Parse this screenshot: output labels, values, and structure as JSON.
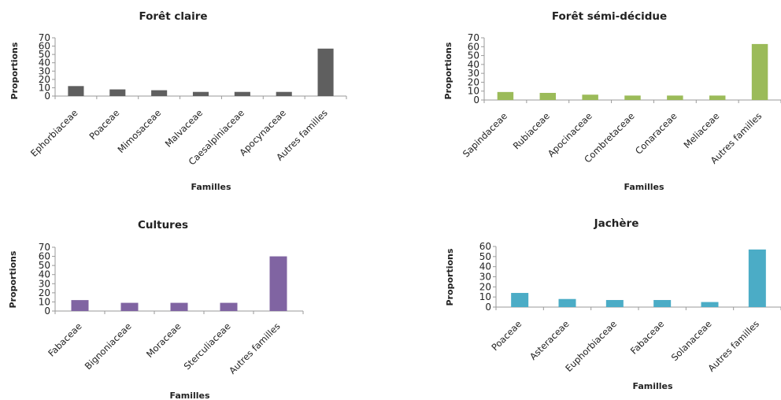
{
  "chart_data": [
    {
      "type": "bar",
      "title": "Forêt claire",
      "xlabel": "Familles",
      "ylabel": "Proportions",
      "ylim": [
        0,
        70
      ],
      "yticks": [
        0,
        10,
        20,
        30,
        40,
        50,
        60,
        70
      ],
      "grid": false,
      "legend": "none",
      "color": "#5f5f5f",
      "categories": [
        "Ephorbiaceae",
        "Poaceae",
        "Mimosaceae",
        "Malvaceae",
        "Caesalpiniaceae",
        "Apocynaceae",
        "Autres familles"
      ],
      "values": [
        12,
        8,
        7,
        5,
        5,
        5,
        57
      ]
    },
    {
      "type": "bar",
      "title": "Forêt sémi-décidue",
      "xlabel": "Familles",
      "ylabel": "Proportions",
      "ylim": [
        0,
        70
      ],
      "yticks": [
        0,
        10,
        20,
        30,
        40,
        50,
        60,
        70
      ],
      "grid": false,
      "legend": "none",
      "color": "#9bbb59",
      "categories": [
        "Sapindaceae",
        "Rubiaceae",
        "Apocinaceae",
        "Combretaceae",
        "Conaraceae",
        "Meliaceae",
        "Autres familles"
      ],
      "values": [
        9,
        8,
        6,
        5,
        5,
        5,
        63
      ]
    },
    {
      "type": "bar",
      "title": "Cultures",
      "xlabel": "Familles",
      "ylabel": "Proportions",
      "ylim": [
        0,
        70
      ],
      "yticks": [
        0,
        10,
        20,
        30,
        40,
        50,
        60,
        70
      ],
      "grid": false,
      "legend": "none",
      "color": "#8064a2",
      "categories": [
        "Fabaceae",
        "Bignoniaceae",
        "Moraceae",
        "Sterculiaceae",
        "Autres familles"
      ],
      "values": [
        12,
        9,
        9,
        9,
        60
      ]
    },
    {
      "type": "bar",
      "title": "Jachère",
      "xlabel": "Familles",
      "ylabel": "Proportions",
      "ylim": [
        0,
        60
      ],
      "yticks": [
        0,
        10,
        20,
        30,
        40,
        50,
        60
      ],
      "grid": false,
      "legend": "none",
      "color": "#4bacc6",
      "categories": [
        "Poaceae",
        "Asteraceae",
        "Euphorbiaceae",
        "Fabaceae",
        "Solanaceae",
        "Autres familles"
      ],
      "values": [
        14,
        8,
        7,
        7,
        5,
        57
      ]
    }
  ]
}
